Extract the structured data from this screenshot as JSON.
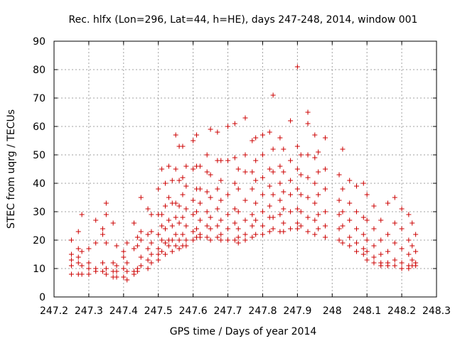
{
  "chart_data": {
    "type": "scatter",
    "title": "Rec. hlfx (Lon=296, Lat=44, h=HE), days 247-248, 2014, window 001",
    "xlabel": "GPS time / Days of year 2014",
    "ylabel": "STEC from uqrg / TECUs",
    "xlim": [
      247.2,
      248.3
    ],
    "ylim": [
      0,
      90
    ],
    "x_ticks": [
      247.2,
      247.3,
      247.4,
      247.5,
      247.6,
      247.7,
      247.8,
      247.9,
      248.0,
      248.1,
      248.2,
      248.3
    ],
    "x_tick_labels": [
      "247.2",
      "247.3",
      "247.4",
      "247.5",
      "247.6",
      "247.7",
      "247.8",
      "247.9",
      "248",
      "248.1",
      "248.2",
      "248.3"
    ],
    "y_ticks": [
      0,
      10,
      20,
      30,
      40,
      50,
      60,
      70,
      80,
      90
    ],
    "y_tick_labels": [
      "0",
      "10",
      "20",
      "30",
      "40",
      "50",
      "60",
      "70",
      "80",
      "90"
    ],
    "grid": true,
    "marker": "plus",
    "color": "#cc0000",
    "points": [
      [
        247.25,
        20
      ],
      [
        247.25,
        15
      ],
      [
        247.25,
        13
      ],
      [
        247.25,
        11
      ],
      [
        247.25,
        8
      ],
      [
        247.27,
        23
      ],
      [
        247.27,
        17
      ],
      [
        247.27,
        14
      ],
      [
        247.27,
        12
      ],
      [
        247.27,
        8
      ],
      [
        247.28,
        29
      ],
      [
        247.28,
        16
      ],
      [
        247.28,
        11
      ],
      [
        247.28,
        8
      ],
      [
        247.3,
        17
      ],
      [
        247.3,
        12
      ],
      [
        247.3,
        10
      ],
      [
        247.3,
        8
      ],
      [
        247.32,
        27
      ],
      [
        247.32,
        19
      ],
      [
        247.32,
        10
      ],
      [
        247.32,
        9
      ],
      [
        247.34,
        24
      ],
      [
        247.34,
        22
      ],
      [
        247.34,
        12
      ],
      [
        247.34,
        9
      ],
      [
        247.35,
        33
      ],
      [
        247.35,
        29
      ],
      [
        247.35,
        19
      ],
      [
        247.35,
        10
      ],
      [
        247.35,
        8
      ],
      [
        247.37,
        26
      ],
      [
        247.37,
        12
      ],
      [
        247.37,
        9
      ],
      [
        247.37,
        7
      ],
      [
        247.38,
        18
      ],
      [
        247.38,
        11
      ],
      [
        247.38,
        9
      ],
      [
        247.38,
        7
      ],
      [
        247.4,
        16
      ],
      [
        247.4,
        14
      ],
      [
        247.4,
        10
      ],
      [
        247.4,
        7
      ],
      [
        247.41,
        19
      ],
      [
        247.41,
        12
      ],
      [
        247.41,
        9
      ],
      [
        247.41,
        6
      ],
      [
        247.43,
        26
      ],
      [
        247.43,
        17
      ],
      [
        247.43,
        9
      ],
      [
        247.43,
        8
      ],
      [
        247.44,
        21
      ],
      [
        247.44,
        18
      ],
      [
        247.44,
        10
      ],
      [
        247.44,
        9
      ],
      [
        247.45,
        35
      ],
      [
        247.45,
        23
      ],
      [
        247.45,
        20
      ],
      [
        247.45,
        14
      ],
      [
        247.45,
        11
      ],
      [
        247.47,
        31
      ],
      [
        247.47,
        22
      ],
      [
        247.47,
        17
      ],
      [
        247.47,
        13
      ],
      [
        247.47,
        10
      ],
      [
        247.48,
        29
      ],
      [
        247.48,
        23
      ],
      [
        247.48,
        19
      ],
      [
        247.48,
        15
      ],
      [
        247.48,
        12
      ],
      [
        247.5,
        38
      ],
      [
        247.5,
        29
      ],
      [
        247.5,
        22
      ],
      [
        247.5,
        17
      ],
      [
        247.5,
        15
      ],
      [
        247.5,
        13
      ],
      [
        247.51,
        45
      ],
      [
        247.51,
        29
      ],
      [
        247.51,
        25
      ],
      [
        247.51,
        20
      ],
      [
        247.51,
        16
      ],
      [
        247.52,
        40
      ],
      [
        247.52,
        32
      ],
      [
        247.52,
        24
      ],
      [
        247.52,
        19
      ],
      [
        247.52,
        15
      ],
      [
        247.53,
        46
      ],
      [
        247.53,
        35
      ],
      [
        247.53,
        27
      ],
      [
        247.53,
        20
      ],
      [
        247.53,
        18
      ],
      [
        247.54,
        41
      ],
      [
        247.54,
        33
      ],
      [
        247.54,
        25
      ],
      [
        247.54,
        20
      ],
      [
        247.54,
        16
      ],
      [
        247.55,
        57
      ],
      [
        247.55,
        45
      ],
      [
        247.55,
        33
      ],
      [
        247.55,
        28
      ],
      [
        247.55,
        22
      ],
      [
        247.55,
        18
      ],
      [
        247.56,
        53
      ],
      [
        247.56,
        41
      ],
      [
        247.56,
        32
      ],
      [
        247.56,
        26
      ],
      [
        247.56,
        20
      ],
      [
        247.56,
        17
      ],
      [
        247.57,
        53
      ],
      [
        247.57,
        42
      ],
      [
        247.57,
        36
      ],
      [
        247.57,
        28
      ],
      [
        247.57,
        22
      ],
      [
        247.57,
        18
      ],
      [
        247.58,
        46
      ],
      [
        247.58,
        39
      ],
      [
        247.58,
        31
      ],
      [
        247.58,
        25
      ],
      [
        247.58,
        20
      ],
      [
        247.58,
        18
      ],
      [
        247.6,
        55
      ],
      [
        247.6,
        45
      ],
      [
        247.6,
        34
      ],
      [
        247.6,
        29
      ],
      [
        247.6,
        23
      ],
      [
        247.6,
        20
      ],
      [
        247.61,
        57
      ],
      [
        247.61,
        46
      ],
      [
        247.61,
        38
      ],
      [
        247.61,
        30
      ],
      [
        247.61,
        24
      ],
      [
        247.61,
        21
      ],
      [
        247.62,
        46
      ],
      [
        247.62,
        38
      ],
      [
        247.62,
        33
      ],
      [
        247.62,
        27
      ],
      [
        247.62,
        22
      ],
      [
        247.62,
        21
      ],
      [
        247.64,
        50
      ],
      [
        247.64,
        44
      ],
      [
        247.64,
        37
      ],
      [
        247.64,
        30
      ],
      [
        247.64,
        25
      ],
      [
        247.64,
        21
      ],
      [
        247.65,
        59
      ],
      [
        247.65,
        43
      ],
      [
        247.65,
        35
      ],
      [
        247.65,
        28
      ],
      [
        247.65,
        24
      ],
      [
        247.65,
        20
      ],
      [
        247.67,
        58
      ],
      [
        247.67,
        48
      ],
      [
        247.67,
        38
      ],
      [
        247.67,
        31
      ],
      [
        247.67,
        25
      ],
      [
        247.67,
        21
      ],
      [
        247.68,
        48
      ],
      [
        247.68,
        41
      ],
      [
        247.68,
        34
      ],
      [
        247.68,
        27
      ],
      [
        247.68,
        22
      ],
      [
        247.68,
        20
      ],
      [
        247.7,
        60
      ],
      [
        247.7,
        48
      ],
      [
        247.7,
        36
      ],
      [
        247.7,
        29
      ],
      [
        247.7,
        24
      ],
      [
        247.7,
        20
      ],
      [
        247.72,
        61
      ],
      [
        247.72,
        49
      ],
      [
        247.72,
        40
      ],
      [
        247.72,
        31
      ],
      [
        247.72,
        26
      ],
      [
        247.72,
        20
      ],
      [
        247.73,
        45
      ],
      [
        247.73,
        38
      ],
      [
        247.73,
        30
      ],
      [
        247.73,
        24
      ],
      [
        247.73,
        21
      ],
      [
        247.73,
        19
      ],
      [
        247.75,
        63
      ],
      [
        247.75,
        50
      ],
      [
        247.75,
        44
      ],
      [
        247.75,
        34
      ],
      [
        247.75,
        27
      ],
      [
        247.75,
        22
      ],
      [
        247.75,
        20
      ],
      [
        247.77,
        55
      ],
      [
        247.77,
        44
      ],
      [
        247.77,
        38
      ],
      [
        247.77,
        29
      ],
      [
        247.77,
        25
      ],
      [
        247.77,
        21
      ],
      [
        247.78,
        56
      ],
      [
        247.78,
        48
      ],
      [
        247.78,
        41
      ],
      [
        247.78,
        33
      ],
      [
        247.78,
        27
      ],
      [
        247.78,
        22
      ],
      [
        247.8,
        57
      ],
      [
        247.8,
        50
      ],
      [
        247.8,
        42
      ],
      [
        247.8,
        36
      ],
      [
        247.8,
        30
      ],
      [
        247.8,
        25
      ],
      [
        247.8,
        22
      ],
      [
        247.82,
        58
      ],
      [
        247.82,
        45
      ],
      [
        247.82,
        39
      ],
      [
        247.82,
        32
      ],
      [
        247.82,
        28
      ],
      [
        247.82,
        23
      ],
      [
        247.83,
        71
      ],
      [
        247.83,
        52
      ],
      [
        247.83,
        44
      ],
      [
        247.83,
        36
      ],
      [
        247.83,
        28
      ],
      [
        247.83,
        24
      ],
      [
        247.85,
        56
      ],
      [
        247.85,
        46
      ],
      [
        247.85,
        40
      ],
      [
        247.85,
        34
      ],
      [
        247.85,
        29
      ],
      [
        247.85,
        23
      ],
      [
        247.86,
        52
      ],
      [
        247.86,
        44
      ],
      [
        247.86,
        37
      ],
      [
        247.86,
        31
      ],
      [
        247.86,
        26
      ],
      [
        247.86,
        23
      ],
      [
        247.88,
        62
      ],
      [
        247.88,
        48
      ],
      [
        247.88,
        41
      ],
      [
        247.88,
        36
      ],
      [
        247.88,
        30
      ],
      [
        247.88,
        24
      ],
      [
        247.9,
        81
      ],
      [
        247.9,
        53
      ],
      [
        247.9,
        45
      ],
      [
        247.9,
        38
      ],
      [
        247.9,
        31
      ],
      [
        247.9,
        26
      ],
      [
        247.9,
        24
      ],
      [
        247.91,
        50
      ],
      [
        247.91,
        43
      ],
      [
        247.91,
        36
      ],
      [
        247.91,
        30
      ],
      [
        247.91,
        25
      ],
      [
        247.93,
        65
      ],
      [
        247.93,
        61
      ],
      [
        247.93,
        50
      ],
      [
        247.93,
        42
      ],
      [
        247.93,
        35
      ],
      [
        247.93,
        28
      ],
      [
        247.93,
        23
      ],
      [
        247.95,
        57
      ],
      [
        247.95,
        49
      ],
      [
        247.95,
        40
      ],
      [
        247.95,
        33
      ],
      [
        247.95,
        27
      ],
      [
        247.95,
        22
      ],
      [
        247.96,
        51
      ],
      [
        247.96,
        44
      ],
      [
        247.96,
        36
      ],
      [
        247.96,
        29
      ],
      [
        247.96,
        24
      ],
      [
        247.98,
        56
      ],
      [
        247.98,
        45
      ],
      [
        247.98,
        38
      ],
      [
        247.98,
        30
      ],
      [
        247.98,
        25
      ],
      [
        247.98,
        21
      ],
      [
        248.02,
        43
      ],
      [
        248.02,
        34
      ],
      [
        248.02,
        29
      ],
      [
        248.02,
        24
      ],
      [
        248.02,
        20
      ],
      [
        248.03,
        52
      ],
      [
        248.03,
        38
      ],
      [
        248.03,
        30
      ],
      [
        248.03,
        25
      ],
      [
        248.03,
        19
      ],
      [
        248.05,
        41
      ],
      [
        248.05,
        33
      ],
      [
        248.05,
        27
      ],
      [
        248.05,
        21
      ],
      [
        248.05,
        18
      ],
      [
        248.07,
        39
      ],
      [
        248.07,
        30
      ],
      [
        248.07,
        24
      ],
      [
        248.07,
        19
      ],
      [
        248.07,
        16
      ],
      [
        248.09,
        40
      ],
      [
        248.09,
        28
      ],
      [
        248.09,
        22
      ],
      [
        248.09,
        17
      ],
      [
        248.09,
        15
      ],
      [
        248.1,
        36
      ],
      [
        248.1,
        27
      ],
      [
        248.1,
        20
      ],
      [
        248.1,
        16
      ],
      [
        248.1,
        13
      ],
      [
        248.12,
        32
      ],
      [
        248.12,
        24
      ],
      [
        248.12,
        18
      ],
      [
        248.12,
        14
      ],
      [
        248.12,
        12
      ],
      [
        248.14,
        27
      ],
      [
        248.14,
        20
      ],
      [
        248.14,
        15
      ],
      [
        248.14,
        12
      ],
      [
        248.14,
        11
      ],
      [
        248.16,
        33
      ],
      [
        248.16,
        22
      ],
      [
        248.16,
        16
      ],
      [
        248.16,
        12
      ],
      [
        248.16,
        11
      ],
      [
        248.18,
        35
      ],
      [
        248.18,
        26
      ],
      [
        248.18,
        19
      ],
      [
        248.18,
        13
      ],
      [
        248.18,
        11
      ],
      [
        248.2,
        31
      ],
      [
        248.2,
        24
      ],
      [
        248.2,
        17
      ],
      [
        248.2,
        12
      ],
      [
        248.2,
        10
      ],
      [
        248.22,
        29
      ],
      [
        248.22,
        20
      ],
      [
        248.22,
        15
      ],
      [
        248.22,
        11
      ],
      [
        248.22,
        10
      ],
      [
        248.23,
        26
      ],
      [
        248.23,
        18
      ],
      [
        248.23,
        13
      ],
      [
        248.23,
        11
      ],
      [
        248.24,
        22
      ],
      [
        248.24,
        16
      ],
      [
        248.24,
        12
      ],
      [
        248.24,
        11
      ]
    ]
  }
}
